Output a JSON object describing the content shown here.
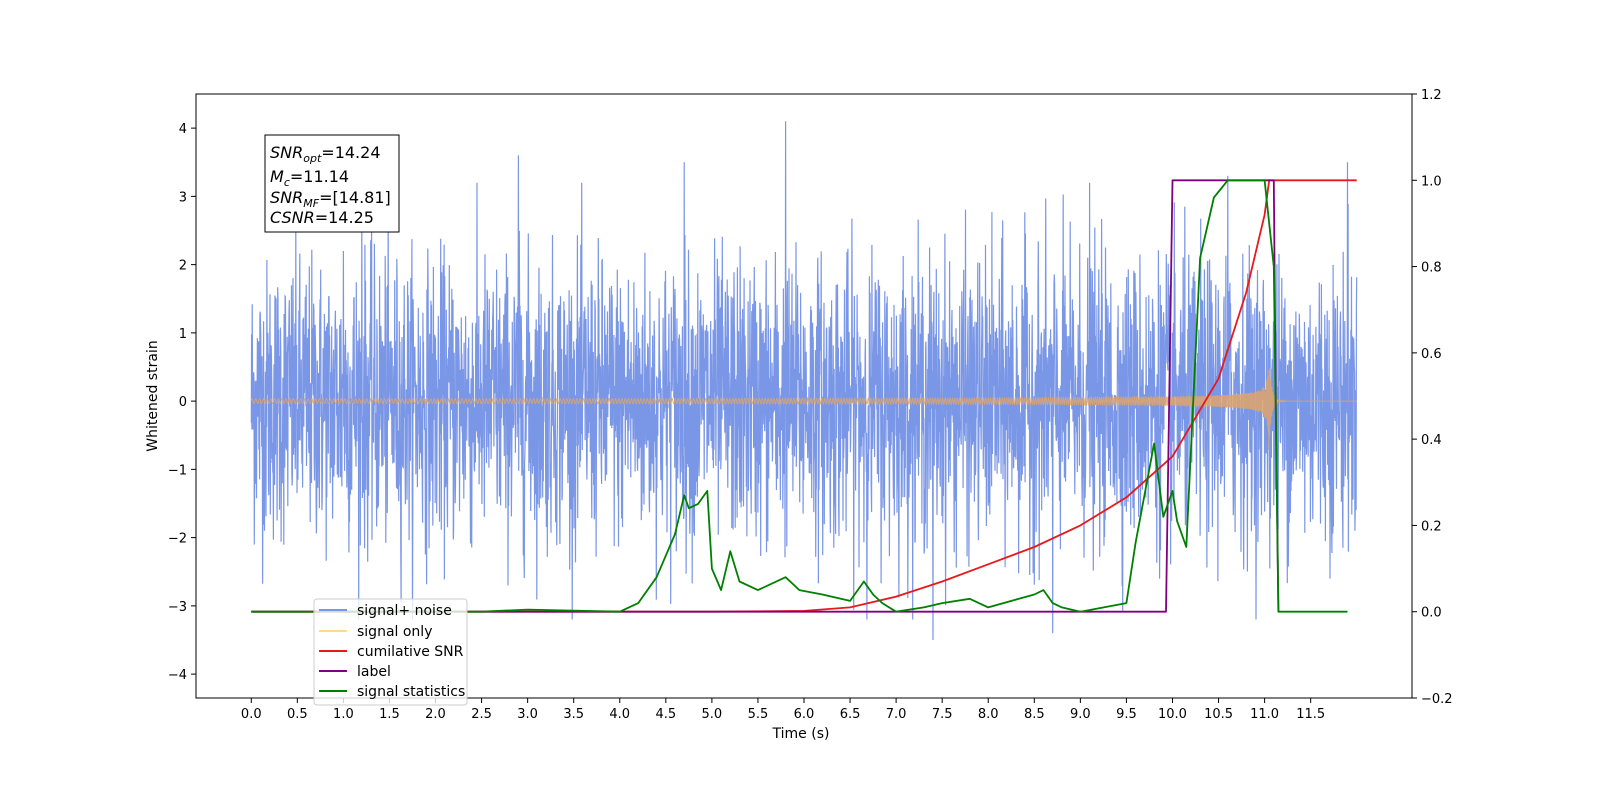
{
  "chart_data": {
    "type": "line",
    "xlabel": "Time (s)",
    "ylabel": "Whitened strain",
    "xlim": [
      -0.6,
      12.6
    ],
    "ylim": [
      -4.35,
      4.5
    ],
    "y2lim": [
      -0.2,
      1.2
    ],
    "x_ticks": [
      "0.0",
      "0.5",
      "1.0",
      "1.5",
      "2.0",
      "2.5",
      "3.0",
      "3.5",
      "4.0",
      "4.5",
      "5.0",
      "5.5",
      "6.0",
      "6.5",
      "7.0",
      "7.5",
      "8.0",
      "8.5",
      "9.0",
      "9.5",
      "10.0",
      "10.5",
      "11.0",
      "11.5"
    ],
    "y_ticks": [
      "4",
      "3",
      "2",
      "1",
      "0",
      "−1",
      "−2",
      "−3",
      "−4"
    ],
    "y2_ticks": [
      "1.2",
      "1.0",
      "0.8",
      "0.6",
      "0.4",
      "0.2",
      "0.0",
      "−0.2"
    ],
    "grid": false,
    "legend_position": "lower-left",
    "annotation": {
      "line1": {
        "label": "SNR",
        "sub": "opt",
        "value": "=14.24"
      },
      "line2": {
        "label": "M",
        "sub": "c",
        "value": "=11.14"
      },
      "line3": {
        "label": "SNR",
        "sub": "MF",
        "value": "=[14.81]"
      },
      "line4": {
        "label": "CSNR",
        "sub": "",
        "value": "=14.25"
      }
    },
    "series": [
      {
        "name": "signal+ noise",
        "axis": "left",
        "color": "#7a96e6",
        "description_kind": "noise",
        "x_range": [
          0.0,
          12.0
        ],
        "amplitude_envelope": 1.2,
        "peaks": [
          [
            1.0,
            2.2
          ],
          [
            1.2,
            2.7
          ],
          [
            2.9,
            3.6
          ],
          [
            4.7,
            3.5
          ],
          [
            5.8,
            4.1
          ],
          [
            7.4,
            -3.5
          ],
          [
            8.7,
            -3.4
          ],
          [
            9.1,
            3.2
          ],
          [
            10.6,
            3.3
          ],
          [
            11.9,
            3.5
          ]
        ]
      },
      {
        "name": "signal only",
        "axis": "left",
        "color": "#dfa56a",
        "description_kind": "chirp",
        "x_range": [
          0.0,
          12.0
        ],
        "merger_time": 11.05,
        "peak_amplitude": 1.6
      },
      {
        "name": "cumilative SNR",
        "axis": "right",
        "color": "#e8191c",
        "x": [
          0.0,
          5.0,
          6.0,
          6.5,
          7.0,
          7.5,
          8.0,
          8.5,
          9.0,
          9.5,
          10.0,
          10.5,
          10.8,
          11.0,
          11.05,
          12.0
        ],
        "y": [
          0.0,
          0.0,
          0.002,
          0.01,
          0.035,
          0.07,
          0.11,
          0.15,
          0.2,
          0.265,
          0.36,
          0.54,
          0.74,
          0.92,
          1.0,
          1.0
        ]
      },
      {
        "name": "label",
        "axis": "right",
        "color": "#800080",
        "x": [
          0.0,
          9.93,
          10.0,
          11.1,
          11.12,
          11.15
        ],
        "y": [
          0.0,
          0.0,
          1.0,
          1.0,
          0.5,
          0.0
        ]
      },
      {
        "name": "signal statistics",
        "axis": "right",
        "color": "#008000",
        "x": [
          0.0,
          2.5,
          3.0,
          4.0,
          4.2,
          4.4,
          4.6,
          4.7,
          4.75,
          4.85,
          4.95,
          5.0,
          5.1,
          5.2,
          5.3,
          5.5,
          5.8,
          5.95,
          6.2,
          6.5,
          6.65,
          6.75,
          6.85,
          7.0,
          7.3,
          7.5,
          7.8,
          8.0,
          8.5,
          8.6,
          8.7,
          8.8,
          9.0,
          9.5,
          9.6,
          9.8,
          9.9,
          10.0,
          10.05,
          10.15,
          10.3,
          10.45,
          10.6,
          11.0,
          11.1,
          11.15,
          11.9
        ],
        "y": [
          0.0,
          0.0,
          0.005,
          0.0,
          0.02,
          0.08,
          0.18,
          0.27,
          0.24,
          0.25,
          0.28,
          0.1,
          0.05,
          0.14,
          0.07,
          0.05,
          0.08,
          0.05,
          0.04,
          0.025,
          0.07,
          0.04,
          0.02,
          0.0,
          0.01,
          0.02,
          0.03,
          0.01,
          0.04,
          0.05,
          0.02,
          0.01,
          0.0,
          0.02,
          0.16,
          0.39,
          0.22,
          0.28,
          0.21,
          0.15,
          0.82,
          0.96,
          1.0,
          1.0,
          0.8,
          0.0,
          0.0
        ]
      }
    ]
  }
}
